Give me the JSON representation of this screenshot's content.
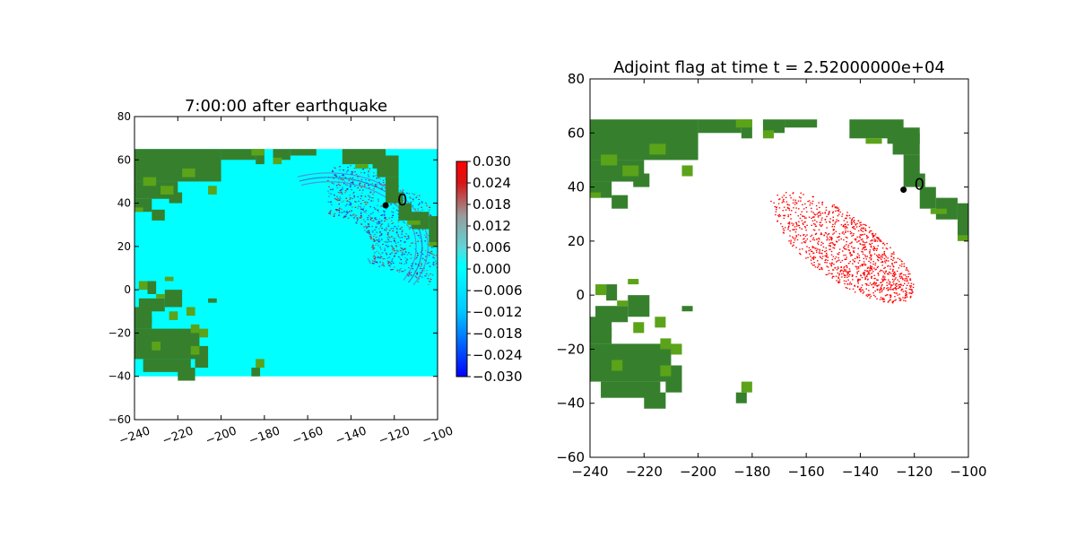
{
  "colors": {
    "land": "#36802d",
    "land_edge": "#5ba319",
    "ocean": "#00ffff",
    "wave_positive": "#d51a1a",
    "wave_negative": "#1a1ad5",
    "flag": "#ff0000",
    "marker": "#000000"
  },
  "chart_data": [
    {
      "type": "heatmap",
      "title": "7:00:00 after earthquake",
      "xlabel": "",
      "ylabel": "",
      "xlim": [
        -240,
        -100
      ],
      "ylim": [
        -60,
        80
      ],
      "xticks": [
        -240,
        -220,
        -200,
        -180,
        -160,
        -140,
        -120,
        -100
      ],
      "yticks": [
        -60,
        -40,
        -20,
        0,
        20,
        40,
        60
      ],
      "xtick_rotation_deg": 20,
      "grid": false,
      "data_extent": {
        "x": [
          -240,
          -100
        ],
        "y": [
          -40,
          65
        ]
      },
      "wavefront_center": [
        -150,
        20
      ],
      "gauge": {
        "label": "0",
        "lon": -124,
        "lat": 39
      },
      "colorbar": {
        "ticks": [
          "0.030",
          "0.024",
          "0.018",
          "0.012",
          "0.006",
          "0.000",
          "−0.006",
          "−0.012",
          "−0.018",
          "−0.024",
          "−0.030"
        ],
        "colors": [
          "#0000ff",
          "#00c6ff",
          "#00ffff",
          "#00ffff",
          "#9a9a9a",
          "#d61616",
          "#ff0000"
        ],
        "range": [
          -0.03,
          0.03
        ]
      }
    },
    {
      "type": "scatter",
      "title": "Adjoint flag at time t = 2.52000000e+04",
      "xlabel": "",
      "ylabel": "",
      "xlim": [
        -240,
        -100
      ],
      "ylim": [
        -60,
        80
      ],
      "xticks": [
        -240,
        -220,
        -200,
        -180,
        -160,
        -140,
        -120,
        -100
      ],
      "yticks": [
        -60,
        -40,
        -20,
        0,
        20,
        40,
        60,
        80
      ],
      "grid": false,
      "flag_region_center": [
        -147,
        18
      ],
      "gauge": {
        "label": "0",
        "lon": -124,
        "lat": 39
      }
    }
  ]
}
